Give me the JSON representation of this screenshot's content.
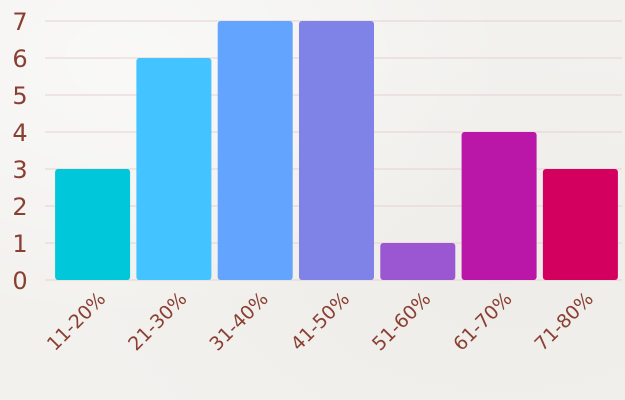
{
  "chart_data": {
    "type": "bar",
    "title": "",
    "xlabel": "",
    "ylabel": "",
    "categories": [
      "11-20%",
      "21-30%",
      "31-40%",
      "41-50%",
      "51-60%",
      "61-70%",
      "71-80%"
    ],
    "values": [
      3,
      6,
      7,
      7,
      1,
      4,
      3
    ],
    "ylim": [
      0,
      7
    ],
    "yticks": [
      "0",
      "1",
      "2",
      "3",
      "4",
      "5",
      "6",
      "7"
    ],
    "grid": true,
    "colors": [
      "#00c7d9",
      "#43c3ff",
      "#63a4ff",
      "#7f82e6",
      "#9b57d1",
      "#ba16a7",
      "#d4005f"
    ]
  }
}
